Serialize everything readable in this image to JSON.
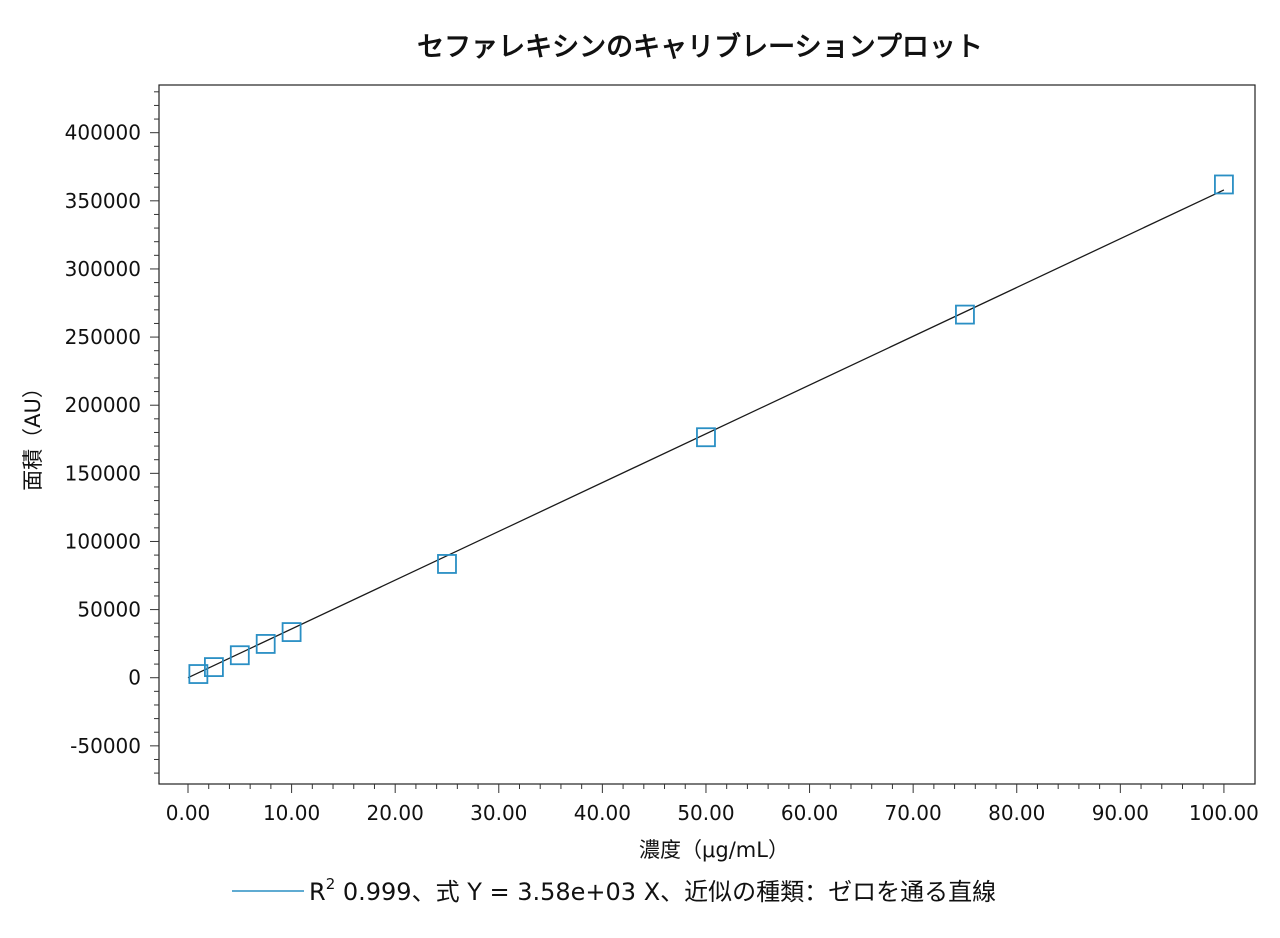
{
  "chart_data": {
    "type": "scatter",
    "title": "セファレキシンのキャリブレーションプロット",
    "xlabel": "濃度（μg/mL）",
    "ylabel": "面積（AU）",
    "xlim": [
      -2.8,
      103
    ],
    "ylim": [
      -78000,
      435000
    ],
    "x_ticks": [
      "0.00",
      "10.00",
      "20.00",
      "30.00",
      "40.00",
      "50.00",
      "60.00",
      "70.00",
      "80.00",
      "90.00",
      "100.00"
    ],
    "x_tick_values": [
      0,
      10,
      20,
      30,
      40,
      50,
      60,
      70,
      80,
      90,
      100
    ],
    "y_ticks": [
      "-50000",
      "0",
      "50000",
      "100000",
      "150000",
      "200000",
      "250000",
      "300000",
      "350000",
      "400000"
    ],
    "y_tick_values": [
      -50000,
      0,
      50000,
      100000,
      150000,
      200000,
      250000,
      300000,
      350000,
      400000
    ],
    "grid": false,
    "legend_position": "bottom",
    "series": [
      {
        "marker": "open-square",
        "color": "#2a8fc4",
        "x": [
          1,
          2.5,
          5,
          7.5,
          10,
          25,
          50,
          75,
          100
        ],
        "y": [
          2700,
          7800,
          16500,
          24800,
          33500,
          83500,
          176500,
          266500,
          362000
        ]
      }
    ],
    "fit": {
      "type": "linear-through-zero",
      "slope": 3580,
      "x_range": [
        0,
        100
      ],
      "color": "#1a1a1a",
      "legend_swatch_color": "#2a8fc4",
      "legend": {
        "r_label": "R",
        "r_superscript": "2",
        "text": " 0.999、式 Y = 3.58e+03 X、近似の種類：ゼロを通る直線"
      }
    }
  }
}
